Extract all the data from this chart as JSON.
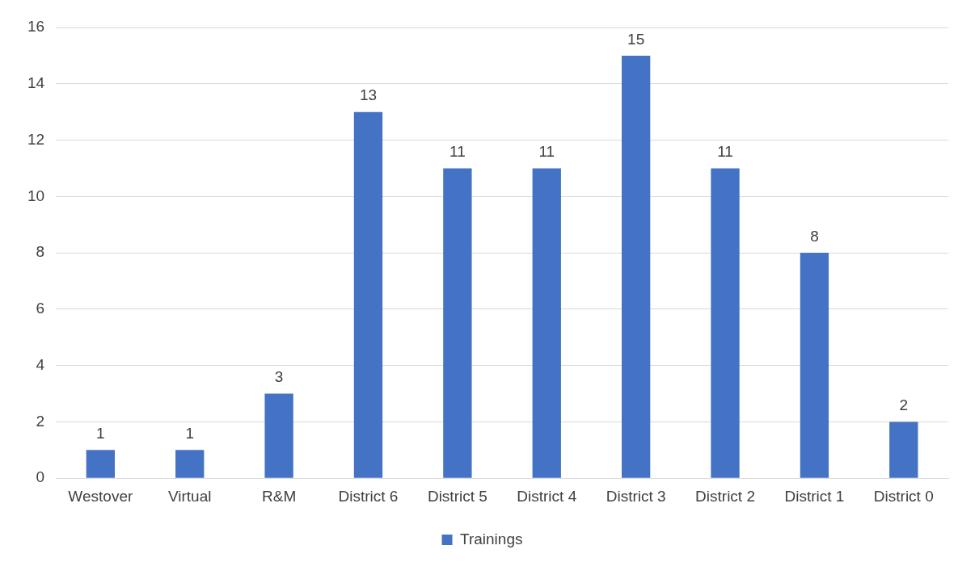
{
  "chart_data": {
    "type": "bar",
    "categories": [
      "Westover",
      "Virtual",
      "R&M",
      "District 6",
      "District 5",
      "District 4",
      "District 3",
      "District 2",
      "District 1",
      "District 0"
    ],
    "series": [
      {
        "name": "Trainings",
        "color": "#4472c4",
        "values": [
          1,
          1,
          3,
          13,
          11,
          11,
          15,
          11,
          8,
          2
        ]
      }
    ],
    "ylim": [
      0,
      16
    ],
    "yticks": [
      0,
      2,
      4,
      6,
      8,
      10,
      12,
      14,
      16
    ],
    "grid": "y",
    "legend": "bottom",
    "data_labels": true
  }
}
